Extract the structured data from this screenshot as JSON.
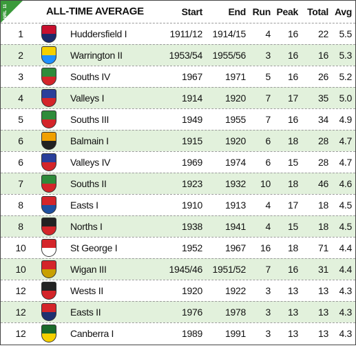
{
  "header": {
    "logo": [
      "11",
      "NRL"
    ],
    "title": "ALL-TIME AVERAGE",
    "columns": [
      "Start",
      "End",
      "Run",
      "Peak",
      "Total",
      "Avg"
    ]
  },
  "table": {
    "rows": [
      [
        "1",
        "Huddersfield I",
        "1911/12",
        "1914/15",
        "4",
        "16",
        "22",
        "5.5"
      ],
      [
        "2",
        "Warrington II",
        "1953/54",
        "1955/56",
        "3",
        "16",
        "16",
        "5.3"
      ],
      [
        "3",
        "Souths IV",
        "1967",
        "1971",
        "5",
        "16",
        "26",
        "5.2"
      ],
      [
        "4",
        "Valleys I",
        "1914",
        "1920",
        "7",
        "17",
        "35",
        "5.0"
      ],
      [
        "5",
        "Souths III",
        "1949",
        "1955",
        "7",
        "16",
        "34",
        "4.9"
      ],
      [
        "6",
        "Balmain I",
        "1915",
        "1920",
        "6",
        "18",
        "28",
        "4.7"
      ],
      [
        "6",
        "Valleys IV",
        "1969",
        "1974",
        "6",
        "15",
        "28",
        "4.7"
      ],
      [
        "7",
        "Souths II",
        "1923",
        "1932",
        "10",
        "18",
        "46",
        "4.6"
      ],
      [
        "8",
        "Easts I",
        "1910",
        "1913",
        "4",
        "17",
        "18",
        "4.5"
      ],
      [
        "8",
        "Norths I",
        "1938",
        "1941",
        "4",
        "15",
        "18",
        "4.5"
      ],
      [
        "10",
        "St George I",
        "1952",
        "1967",
        "16",
        "18",
        "71",
        "4.4"
      ],
      [
        "10",
        "Wigan III",
        "1945/46",
        "1951/52",
        "7",
        "16",
        "31",
        "4.4"
      ],
      [
        "12",
        "Wests II",
        "1920",
        "1922",
        "3",
        "13",
        "13",
        "4.3"
      ],
      [
        "12",
        "Easts II",
        "1976",
        "1978",
        "3",
        "13",
        "13",
        "4.3"
      ],
      [
        "12",
        "Canberra I",
        "1989",
        "1991",
        "3",
        "13",
        "13",
        "4.3"
      ]
    ]
  }
}
